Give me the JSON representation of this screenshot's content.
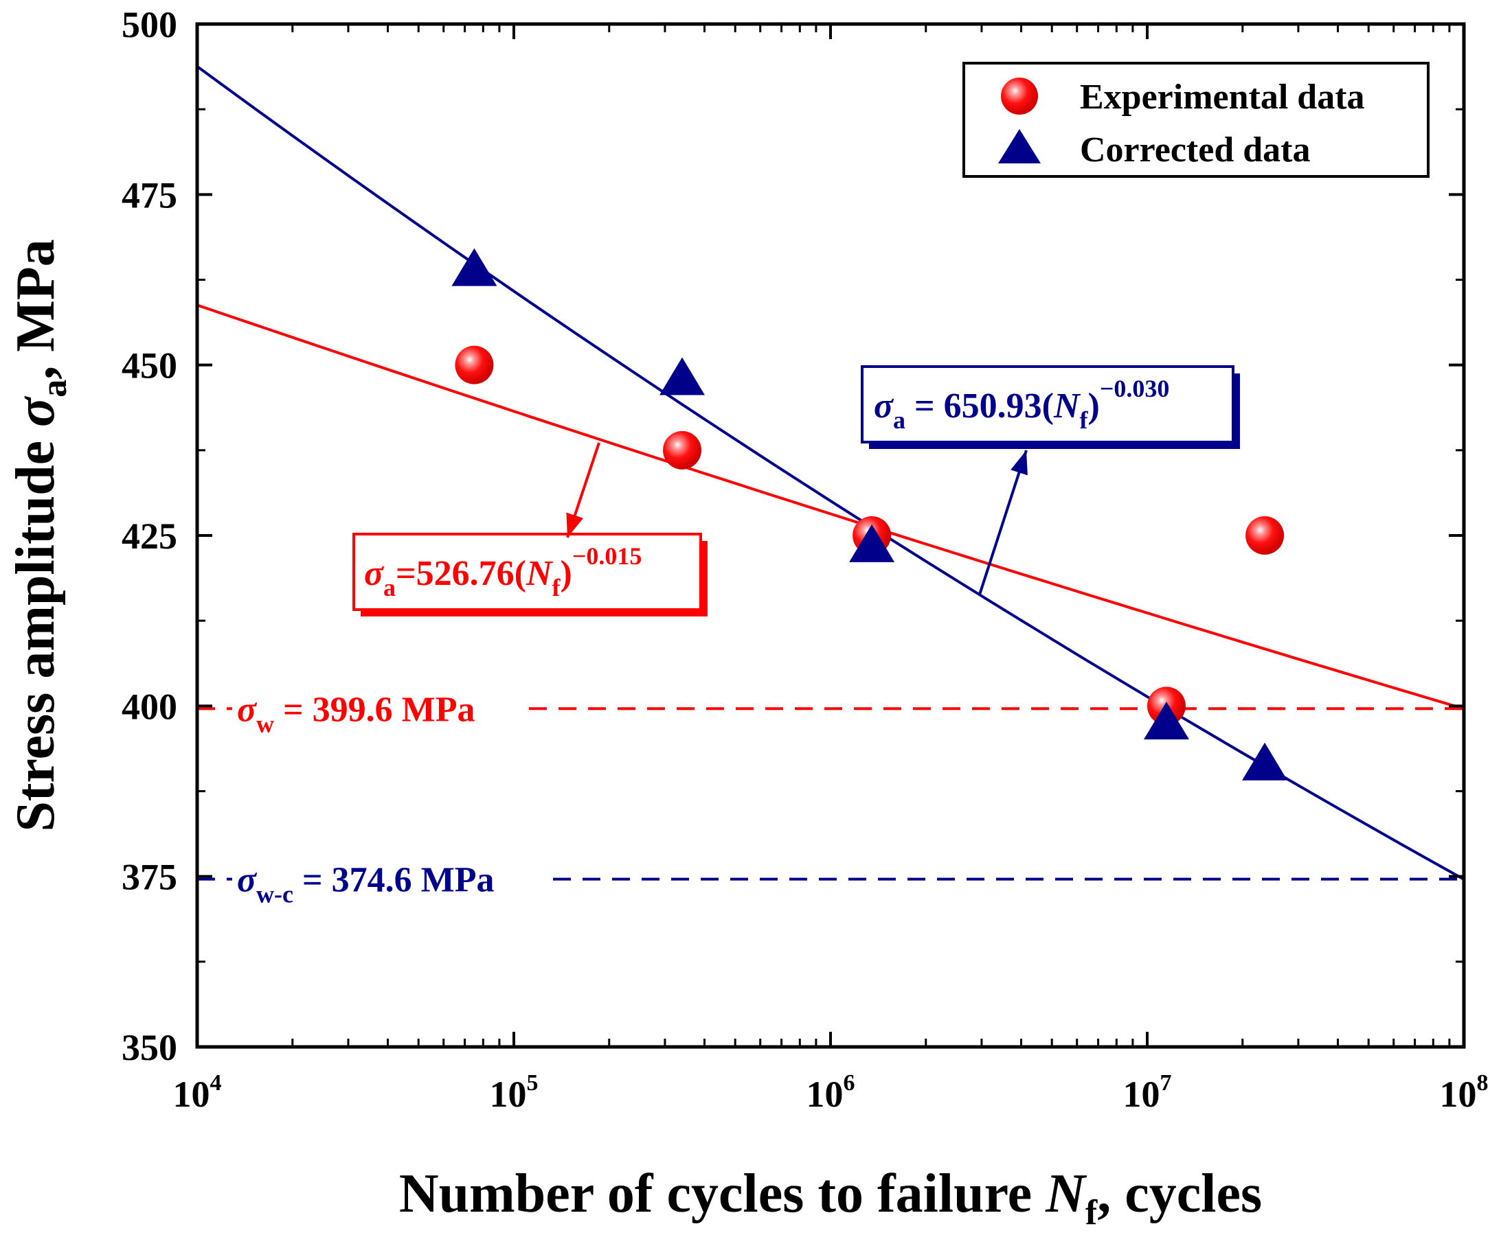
{
  "chart_data": {
    "type": "scatter",
    "title": "",
    "xlabel_text": "Number of cycles to failure ",
    "xlabel_var": "N",
    "xlabel_sub": "f",
    "xlabel_tail": ", cycles",
    "ylabel_text": "Stress amplitude ",
    "ylabel_var": "σ",
    "ylabel_sub": "a",
    "ylabel_tail": ", MPa",
    "xscale": "log",
    "xlim": [
      10000,
      100000000
    ],
    "ylim": [
      350,
      500
    ],
    "x_tick_base": "10",
    "x_tick_exps": [
      "4",
      "5",
      "6",
      "7",
      "8"
    ],
    "y_ticks": [
      "350",
      "375",
      "400",
      "425",
      "450",
      "475",
      "500"
    ],
    "grid": false,
    "legend_position": "top-right",
    "series": [
      {
        "name": "Experimental data",
        "marker": "sphere",
        "color": "#ff0000",
        "points": [
          [
            75000,
            450
          ],
          [
            340000,
            437.5
          ],
          [
            1350000,
            425
          ],
          [
            11500000,
            400
          ],
          [
            23500000,
            425
          ]
        ]
      },
      {
        "name": "Corrected data",
        "marker": "triangle",
        "color": "#00008b",
        "points": [
          [
            75000,
            464
          ],
          [
            340000,
            448
          ],
          [
            1350000,
            423.5
          ],
          [
            11500000,
            397.5
          ],
          [
            23500000,
            391.5
          ]
        ]
      }
    ],
    "fit_lines": [
      {
        "color": "#ff0000",
        "coefficient": 526.76,
        "exponent": -0.015,
        "label_var": "σ",
        "label_sub": "a",
        "label_eq": "=526.76(",
        "label_n": "N",
        "label_nsub": "f",
        "label_close": ")",
        "label_exp": "−0.015"
      },
      {
        "color": "#00008b",
        "coefficient": 650.93,
        "exponent": -0.03,
        "label_var": "σ",
        "label_sub": "a",
        "label_eq": " = 650.93(",
        "label_n": "N",
        "label_nsub": "f",
        "label_close": ")",
        "label_exp": "−0.030"
      }
    ],
    "limit_lines": [
      {
        "color": "#ff0000",
        "value": 399.6,
        "label_var": "σ",
        "label_sub": "w",
        "label_text": " = 399.6 MPa"
      },
      {
        "color": "#00008b",
        "value": 374.6,
        "label_var": "σ",
        "label_sub": "w-c",
        "label_text": " = 374.6 MPa"
      }
    ]
  }
}
